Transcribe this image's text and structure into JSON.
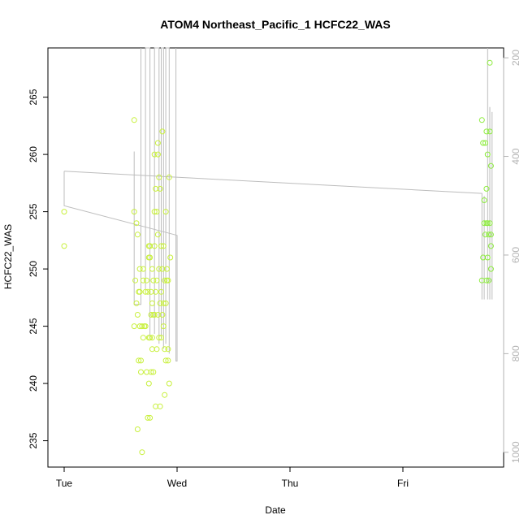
{
  "chart_data": {
    "type": "scatter",
    "title": "ATOM4 Northeast_Pacific_1 HCFC22_WAS",
    "xlabel": "Date",
    "ylabel": "HCFC22_WAS",
    "x_ticks": [
      "Tue",
      "Wed",
      "Thu",
      "Fri"
    ],
    "y_ticks": [
      235,
      240,
      245,
      250,
      255,
      260,
      265
    ],
    "y2_ticks": [
      200,
      400,
      600,
      800,
      1000
    ],
    "ylim": [
      232.7,
      269.3
    ],
    "y2lim": [
      1030,
      180
    ],
    "colors": {
      "axis": "#000000",
      "secondary_axis": "#b3b3b3",
      "profile_line": "#bdbdbd",
      "points_early": "#c8f03c",
      "points_late": "#8cec3c"
    },
    "points_early": [
      [
        0.0,
        255
      ],
      [
        0.0,
        252
      ],
      [
        0.62,
        263
      ],
      [
        0.62,
        255
      ],
      [
        0.62,
        245
      ],
      [
        0.63,
        249
      ],
      [
        0.64,
        254
      ],
      [
        0.64,
        247
      ],
      [
        0.65,
        253
      ],
      [
        0.65,
        246
      ],
      [
        0.65,
        236
      ],
      [
        0.66,
        248
      ],
      [
        0.66,
        242
      ],
      [
        0.67,
        250
      ],
      [
        0.67,
        248
      ],
      [
        0.67,
        245
      ],
      [
        0.68,
        242
      ],
      [
        0.68,
        241
      ],
      [
        0.69,
        245
      ],
      [
        0.69,
        234
      ],
      [
        0.7,
        244
      ],
      [
        0.7,
        249
      ],
      [
        0.7,
        250
      ],
      [
        0.71,
        245
      ],
      [
        0.72,
        248
      ],
      [
        0.72,
        245
      ],
      [
        0.73,
        249
      ],
      [
        0.73,
        241
      ],
      [
        0.74,
        237
      ],
      [
        0.74,
        248
      ],
      [
        0.75,
        251
      ],
      [
        0.75,
        252
      ],
      [
        0.75,
        240
      ],
      [
        0.75,
        244
      ],
      [
        0.76,
        237
      ],
      [
        0.76,
        244
      ],
      [
        0.76,
        251
      ],
      [
        0.77,
        246
      ],
      [
        0.77,
        241
      ],
      [
        0.77,
        248
      ],
      [
        0.78,
        250
      ],
      [
        0.78,
        243
      ],
      [
        0.78,
        247
      ],
      [
        0.78,
        244
      ],
      [
        0.79,
        241
      ],
      [
        0.79,
        246
      ],
      [
        0.79,
        249
      ],
      [
        0.8,
        255
      ],
      [
        0.8,
        260
      ],
      [
        0.8,
        252
      ],
      [
        0.8,
        246
      ],
      [
        0.81,
        238
      ],
      [
        0.81,
        248
      ],
      [
        0.81,
        257
      ],
      [
        0.82,
        249
      ],
      [
        0.82,
        255
      ],
      [
        0.82,
        243
      ],
      [
        0.83,
        260
      ],
      [
        0.83,
        261
      ],
      [
        0.83,
        253
      ],
      [
        0.83,
        246
      ],
      [
        0.84,
        258
      ],
      [
        0.84,
        250
      ],
      [
        0.84,
        244
      ],
      [
        0.85,
        247
      ],
      [
        0.85,
        257
      ],
      [
        0.85,
        238
      ],
      [
        0.86,
        252
      ],
      [
        0.86,
        248
      ],
      [
        0.86,
        244
      ],
      [
        0.87,
        262
      ],
      [
        0.87,
        246
      ],
      [
        0.87,
        250
      ],
      [
        0.88,
        252
      ],
      [
        0.88,
        247
      ],
      [
        0.88,
        245
      ],
      [
        0.89,
        239
      ],
      [
        0.89,
        243
      ],
      [
        0.89,
        249
      ],
      [
        0.9,
        242
      ],
      [
        0.9,
        247
      ],
      [
        0.9,
        255
      ],
      [
        0.91,
        249
      ],
      [
        0.91,
        250
      ],
      [
        0.92,
        243
      ],
      [
        0.92,
        249
      ],
      [
        0.92,
        242
      ],
      [
        0.93,
        240
      ],
      [
        0.93,
        258
      ],
      [
        0.94,
        251
      ],
      [
        0.76,
        252
      ]
    ],
    "points_late": [
      [
        3.7,
        263
      ],
      [
        3.7,
        249
      ],
      [
        3.71,
        261
      ],
      [
        3.71,
        251
      ],
      [
        3.72,
        256
      ],
      [
        3.72,
        254
      ],
      [
        3.73,
        261
      ],
      [
        3.73,
        253
      ],
      [
        3.74,
        262
      ],
      [
        3.74,
        257
      ],
      [
        3.74,
        254
      ],
      [
        3.74,
        249
      ],
      [
        3.75,
        260
      ],
      [
        3.75,
        254
      ],
      [
        3.75,
        251
      ],
      [
        3.76,
        253
      ],
      [
        3.76,
        249
      ],
      [
        3.77,
        268
      ],
      [
        3.77,
        262
      ],
      [
        3.77,
        254
      ],
      [
        3.78,
        259
      ],
      [
        3.78,
        252
      ],
      [
        3.78,
        250
      ],
      [
        3.78,
        253
      ]
    ],
    "profile_lines": [
      [
        [
          0.0,
          430
        ],
        [
          0.0,
          500
        ],
        [
          1.0,
          560
        ],
        [
          1.0,
          815
        ],
        [
          0.99,
          815
        ],
        [
          0.99,
          180
        ]
      ],
      [
        [
          0.0,
          430
        ],
        [
          3.7,
          475
        ],
        [
          3.7,
          690
        ]
      ],
      [
        [
          0.62,
          390
        ],
        [
          0.62,
          700
        ],
        [
          0.68,
          700
        ],
        [
          0.68,
          180
        ]
      ],
      [
        [
          0.72,
          670
        ],
        [
          0.72,
          180
        ],
        [
          0.76,
          180
        ],
        [
          0.76,
          770
        ]
      ],
      [
        [
          0.8,
          760
        ],
        [
          0.8,
          180
        ],
        [
          0.84,
          180
        ],
        [
          0.84,
          780
        ]
      ],
      [
        [
          0.86,
          770
        ],
        [
          0.86,
          180
        ],
        [
          0.88,
          180
        ],
        [
          0.88,
          790
        ]
      ],
      [
        [
          0.9,
          780
        ],
        [
          0.9,
          180
        ],
        [
          0.93,
          180
        ],
        [
          0.93,
          800
        ]
      ],
      [
        [
          3.72,
          480
        ],
        [
          3.72,
          690
        ]
      ],
      [
        [
          3.75,
          180
        ],
        [
          3.75,
          690
        ]
      ],
      [
        [
          3.77,
          300
        ],
        [
          3.77,
          690
        ]
      ],
      [
        [
          3.79,
          310
        ],
        [
          3.79,
          690
        ]
      ]
    ]
  }
}
